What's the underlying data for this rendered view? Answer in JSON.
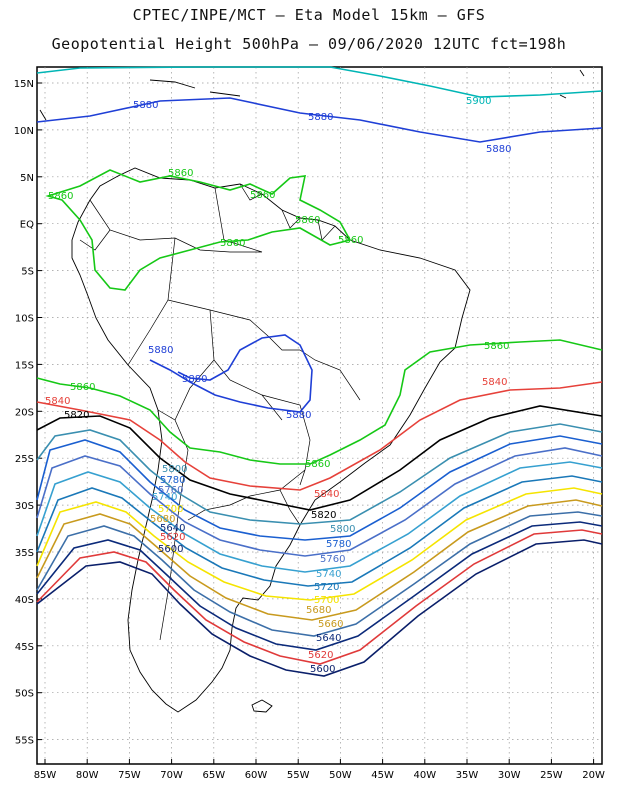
{
  "title_line1": "CPTEC/INPE/MCT –  Eta Model 15km – GFS",
  "title_line2": "Geopotential Height 500hPa – 09/06/2020 12UTC fct=198h",
  "lat_ticks": [
    "15N",
    "10N",
    "5N",
    "EQ",
    "5S",
    "10S",
    "15S",
    "20S",
    "25S",
    "30S",
    "35S",
    "40S",
    "45S",
    "50S",
    "55S"
  ],
  "lon_ticks": [
    "85W",
    "80W",
    "75W",
    "70W",
    "65W",
    "60W",
    "55W",
    "50W",
    "45W",
    "40W",
    "35W",
    "30W",
    "25W",
    "20W"
  ],
  "contour_labels": {
    "l5900": "5900",
    "l5880": "5880",
    "l5860": "5860",
    "l5840": "5840",
    "l5820": "5820",
    "l5800": "5800",
    "l5780": "5780",
    "l5760": "5760",
    "l5740": "5740",
    "l5720": "5720",
    "l5700": "5700",
    "l5680": "5680",
    "l5660": "5660",
    "l5640": "5640",
    "l5620": "5620",
    "l5600": "5600"
  },
  "colors": {
    "c5900": "#00b5b5",
    "c5880": "#1f3fd6",
    "c5860": "#16c816",
    "c5840": "#e6413a",
    "c5820": "#000000",
    "c5800": "#3a8fb0",
    "c5780": "#1a5fd0",
    "c5760": "#4a6fc8",
    "c5740": "#36a0d0",
    "c5720": "#1a78b8",
    "c5700": "#f5e400",
    "c5680": "#c89a1e",
    "c5660": "#3c6fa8",
    "c5640": "#0b2a7a",
    "c5620": "#e03a3a",
    "c5600": "#0a1f6a",
    "land": "#000000",
    "grid": "#9a9a9a"
  }
}
